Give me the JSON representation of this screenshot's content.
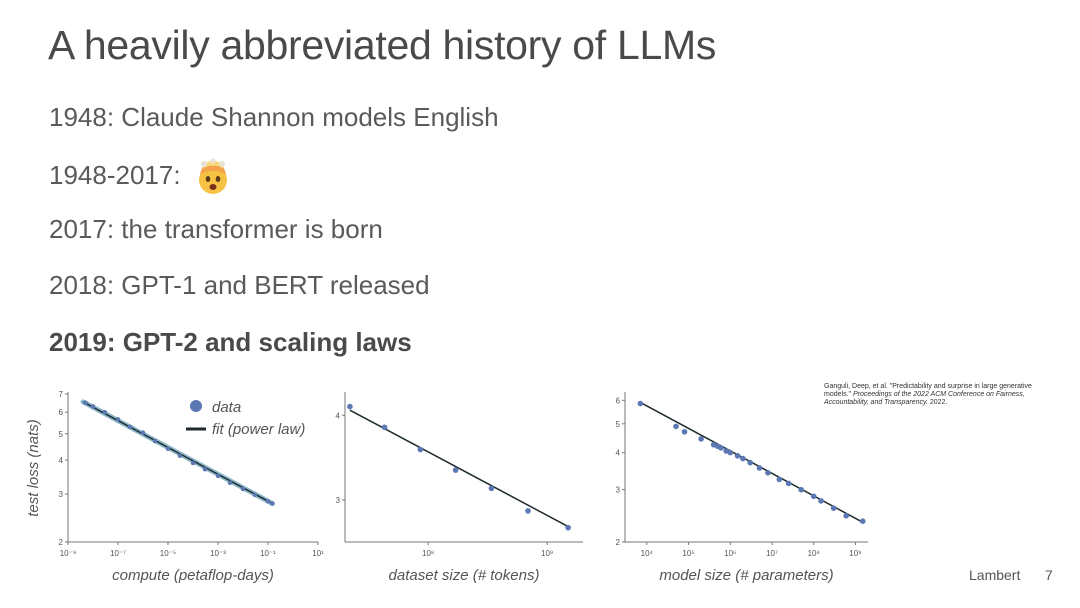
{
  "slide": {
    "title": "A heavily abbreviated history of LLMs",
    "bullets": [
      {
        "text": "1948: Claude Shannon models English"
      },
      {
        "text": "1948-2017:",
        "emoji": "exploding-head-emoji"
      },
      {
        "text": "2017: the transformer is born"
      },
      {
        "text": "2018: GPT-1 and BERT released"
      },
      {
        "text": "2019: GPT-2 and scaling laws",
        "bold": true
      }
    ],
    "citation": {
      "lead": "Ganguli, Deep, et al. \"Predictability and surprise in large generative models.\" ",
      "italic": "Proceedings of the 2022 ACM Conference on Fairness, Accountability, and Transparency.",
      "year": " 2022."
    },
    "footer": {
      "author": "Lambert",
      "page": "7"
    }
  },
  "colors": {
    "point": "#5b78b4",
    "fit": "#1f2b2e",
    "fitHalo": "#6fa6bd",
    "axis": "#777777",
    "text": "#555555"
  },
  "chart_data": [
    {
      "type": "scatter",
      "xscale": "log",
      "yscale": "log",
      "xlabel": "compute (petaflop-days)",
      "ylabel": "test loss (nats)",
      "xlim": [
        1e-09,
        10
      ],
      "ylim": [
        2,
        7
      ],
      "x_ticks": [
        "10⁻⁹",
        "10⁻⁷",
        "10⁻⁵",
        "10⁻³",
        "10⁻¹",
        "10¹"
      ],
      "y_ticks": [
        "2",
        "3",
        "4",
        "5",
        "6",
        "7"
      ],
      "legend": {
        "position": "top-right",
        "entries": [
          "data",
          "fit (power law)"
        ]
      },
      "series": [
        {
          "name": "data",
          "x": [
            5e-09,
            1e-08,
            3e-08,
            1e-07,
            3e-07,
            1e-06,
            3e-06,
            1e-05,
            3e-05,
            0.0001,
            0.0003,
            0.001,
            0.003,
            0.01,
            0.03,
            0.1,
            0.15
          ],
          "y": [
            6.5,
            6.3,
            6.0,
            5.65,
            5.3,
            5.05,
            4.7,
            4.4,
            4.15,
            3.9,
            3.7,
            3.5,
            3.3,
            3.13,
            2.98,
            2.82,
            2.77
          ]
        },
        {
          "name": "fit (power law)",
          "x": [
            4e-09,
            0.15
          ],
          "y": [
            6.55,
            2.77
          ]
        }
      ]
    },
    {
      "type": "scatter",
      "xscale": "log",
      "yscale": "log",
      "xlabel": "dataset size (# tokens)",
      "ylabel": "",
      "xlim": [
        20000000.0,
        2000000000.0
      ],
      "ylim": [
        2.6,
        4.3
      ],
      "x_ticks": [
        "10⁸",
        "10⁹"
      ],
      "y_ticks": [
        "3",
        "4"
      ],
      "series": [
        {
          "name": "data",
          "x": [
            22000000.0,
            43000000.0,
            86000000.0,
            170000000.0,
            340000000.0,
            690000000.0,
            1500000000.0
          ],
          "y": [
            4.12,
            3.84,
            3.56,
            3.32,
            3.12,
            2.89,
            2.73
          ]
        },
        {
          "name": "fit (power law)",
          "x": [
            22000000.0,
            1500000000.0
          ],
          "y": [
            4.07,
            2.74
          ]
        }
      ]
    },
    {
      "type": "scatter",
      "xscale": "log",
      "yscale": "log",
      "xlabel": "model size (# parameters)",
      "ylabel": "",
      "xlim": [
        3000.0,
        2000000000.0
      ],
      "ylim": [
        2,
        6.3
      ],
      "x_ticks": [
        "10⁴",
        "10⁵",
        "10⁶",
        "10⁷",
        "10⁸",
        "10⁹"
      ],
      "y_ticks": [
        "2",
        "3",
        "4",
        "5",
        "6"
      ],
      "series": [
        {
          "name": "data",
          "x": [
            7000.0,
            50000.0,
            80000.0,
            200000.0,
            400000.0,
            500000.0,
            600000.0,
            800000.0,
            1000000.0,
            1500000.0,
            2000000.0,
            3000000.0,
            5000000.0,
            8000000.0,
            15000000.0,
            25000000.0,
            50000000.0,
            100000000.0,
            150000000.0,
            300000000.0,
            600000000.0,
            1500000000.0
          ],
          "y": [
            5.85,
            4.9,
            4.7,
            4.45,
            4.25,
            4.2,
            4.15,
            4.05,
            4.0,
            3.9,
            3.82,
            3.7,
            3.55,
            3.42,
            3.25,
            3.15,
            3.0,
            2.85,
            2.75,
            2.6,
            2.45,
            2.35
          ]
        },
        {
          "name": "fit (power law)",
          "x": [
            7000.0,
            1500000000.0
          ],
          "y": [
            5.9,
            2.33
          ]
        }
      ]
    }
  ]
}
